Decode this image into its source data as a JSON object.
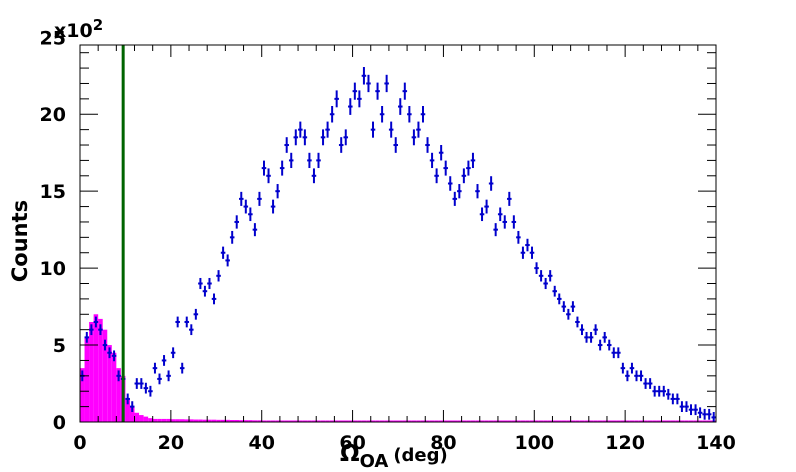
{
  "chart_data": {
    "type": "scatter",
    "title": "",
    "xlabel": "Ω",
    "xlabel_subscript": "OA",
    "xlabel_unit": "(deg)",
    "ylabel": "Counts",
    "y_multiplier": "x10",
    "y_multiplier_exp": "2",
    "xlim": [
      0,
      140
    ],
    "ylim": [
      0,
      24.5
    ],
    "x_ticks": [
      0,
      20,
      40,
      60,
      80,
      100,
      120,
      140
    ],
    "y_ticks": [
      0,
      5,
      10,
      15,
      20,
      25
    ],
    "grid": false,
    "cut_line": {
      "x": 9.5,
      "y_top": 24.5,
      "color": "#006400"
    },
    "series": [
      {
        "style": "histogram",
        "color": "#ff00ff",
        "bin_width": 1,
        "x_start": 0,
        "values": [
          3.5,
          5.5,
          6.5,
          7.0,
          6.7,
          6.0,
          5.0,
          4.5,
          3.5,
          3.0,
          1.5,
          1.0,
          0.6,
          0.45,
          0.35,
          0.25,
          0.2,
          0.2,
          0.2,
          0.2,
          0.18,
          0.18,
          0.18,
          0.17,
          0.17,
          0.16,
          0.16,
          0.15,
          0.15,
          0.15,
          0.14,
          0.14,
          0.14,
          0.13,
          0.13,
          0.12,
          0.12,
          0.12,
          0.11,
          0.11,
          0.1,
          0.1,
          0.1,
          0.1,
          0.1,
          0.1,
          0.1,
          0.1,
          0.1,
          0.1,
          0.1,
          0.1,
          0.1,
          0.1,
          0.1,
          0.1,
          0.1,
          0.1,
          0.1,
          0.1,
          0.1,
          0.1,
          0.1,
          0.1,
          0.1,
          0.1,
          0.1,
          0.1,
          0.1,
          0.1,
          0.1,
          0.1,
          0.1,
          0.1,
          0.1,
          0.1,
          0.1,
          0.1,
          0.1,
          0.1,
          0.1,
          0.1,
          0.1,
          0.1,
          0.1,
          0.1,
          0.1,
          0.1,
          0.1,
          0.1,
          0.1,
          0.1,
          0.1,
          0.1,
          0.1,
          0.1,
          0.1,
          0.1,
          0.1,
          0.1,
          0.1,
          0.1,
          0.1,
          0.1,
          0.1,
          0.1,
          0.1,
          0.1,
          0.1,
          0.1,
          0.1,
          0.1,
          0.1,
          0.1,
          0.1,
          0.1,
          0.1,
          0.1,
          0.1,
          0.1,
          0.1,
          0.1,
          0.1,
          0.1,
          0.1,
          0.1,
          0.1,
          0.1,
          0.1,
          0.1,
          0.1,
          0.1,
          0.1,
          0.1,
          0.1,
          0.1,
          0.1,
          0.1,
          0.1,
          0.1
        ]
      },
      {
        "style": "errorbar",
        "color": "#0000cc",
        "x_start": 0.5,
        "x_step": 1,
        "values": [
          3.0,
          5.5,
          6.0,
          6.5,
          6.0,
          5.0,
          4.5,
          4.3,
          3.0,
          2.8,
          1.5,
          1.0,
          2.5,
          2.5,
          2.2,
          2.0,
          3.5,
          2.8,
          4.0,
          3.0,
          4.5,
          6.5,
          3.5,
          6.5,
          6.0,
          7.0,
          9.0,
          8.5,
          9.0,
          8.0,
          9.5,
          11.0,
          10.5,
          12.0,
          13.0,
          14.5,
          14.0,
          13.5,
          12.5,
          14.5,
          16.5,
          16.0,
          14.0,
          15.0,
          16.5,
          18.0,
          17.0,
          18.5,
          19.0,
          18.5,
          17.0,
          16.0,
          17.0,
          18.5,
          19.0,
          20.0,
          21.0,
          18.0,
          18.5,
          20.5,
          21.5,
          21.0,
          22.5,
          22.0,
          19.0,
          21.5,
          20.0,
          22.0,
          19.0,
          18.0,
          20.5,
          21.5,
          20.0,
          18.5,
          19.0,
          20.0,
          18.0,
          17.0,
          16.0,
          17.5,
          16.5,
          15.5,
          14.5,
          15.0,
          16.0,
          16.5,
          17.0,
          15.0,
          13.5,
          14.0,
          15.5,
          12.5,
          13.5,
          13.0,
          14.5,
          13.0,
          12.0,
          11.0,
          11.5,
          11.0,
          10.0,
          9.5,
          9.0,
          9.5,
          8.5,
          8.0,
          7.5,
          7.0,
          7.5,
          6.5,
          6.0,
          5.5,
          5.5,
          6.0,
          5.0,
          5.5,
          5.0,
          4.5,
          4.5,
          3.5,
          3.0,
          3.5,
          3.0,
          3.0,
          2.5,
          2.5,
          2.0,
          2.0,
          2.0,
          1.8,
          1.5,
          1.5,
          1.0,
          1.0,
          0.8,
          0.8,
          0.6,
          0.5,
          0.5,
          0.3
        ]
      }
    ]
  }
}
